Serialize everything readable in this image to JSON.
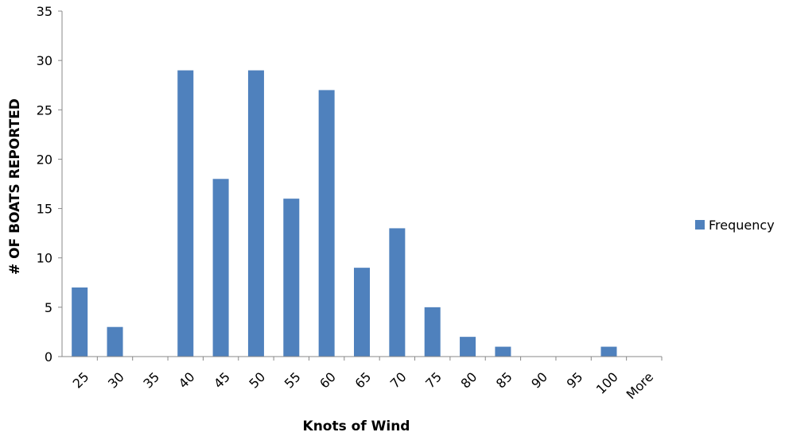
{
  "chart_data": {
    "type": "bar",
    "categories": [
      "25",
      "30",
      "35",
      "40",
      "45",
      "50",
      "55",
      "60",
      "65",
      "70",
      "75",
      "80",
      "85",
      "90",
      "95",
      "100",
      "More"
    ],
    "series": [
      {
        "name": "Frequency",
        "values": [
          7,
          3,
          0,
          29,
          18,
          29,
          16,
          27,
          9,
          13,
          5,
          2,
          1,
          0,
          0,
          1,
          0
        ]
      }
    ],
    "xlabel": "Knots of Wind",
    "ylabel": "# OF BOATS REPORTED",
    "ylim": [
      0,
      35
    ],
    "yticks": [
      0,
      5,
      10,
      15,
      20,
      25,
      30,
      35
    ],
    "grid": false,
    "legend": "right",
    "bar_color": "#4f81bd"
  }
}
